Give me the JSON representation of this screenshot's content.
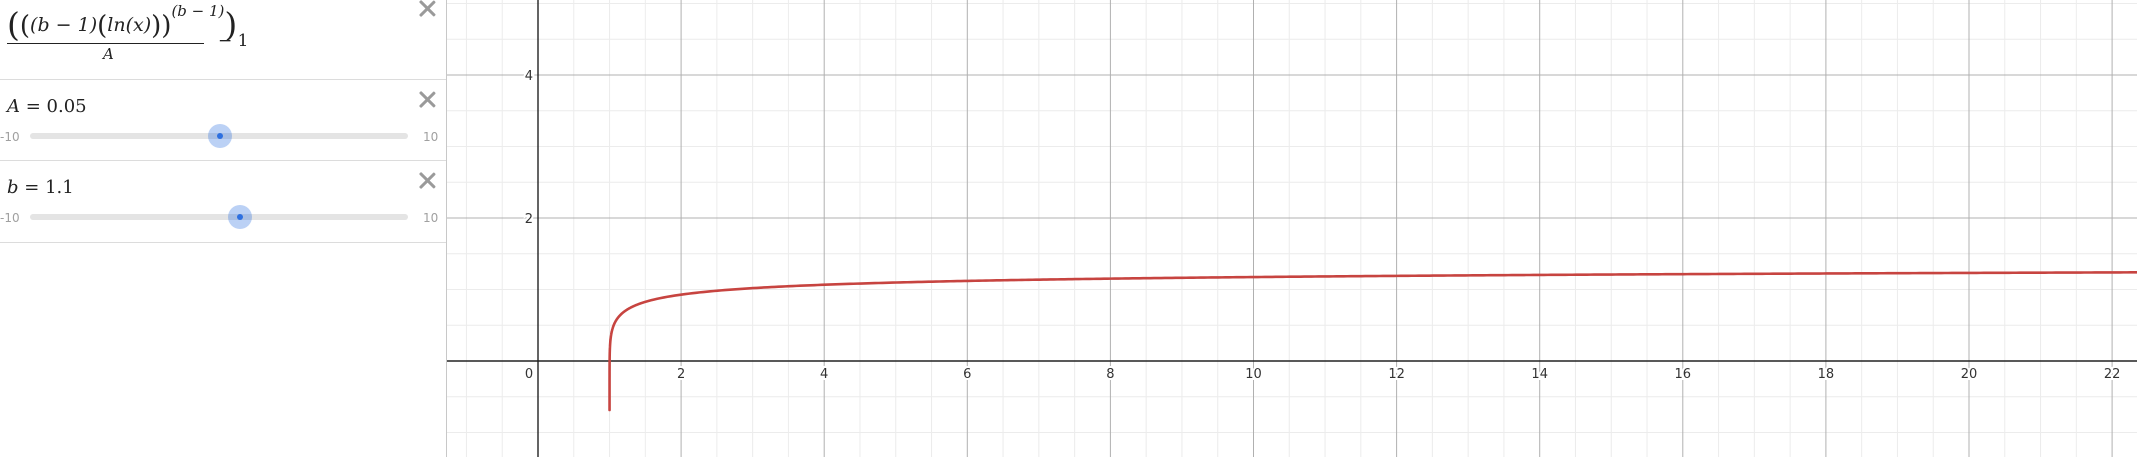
{
  "expression_list": {
    "formula": {
      "numerator_part1": "(b − 1)",
      "numerator_part2": "ln(x)",
      "exponent": "(b − 1)",
      "denominator": "A",
      "suffix": "− 1"
    },
    "slider_a": {
      "variable": "A",
      "value_text": "= 0.05",
      "value": 0.05,
      "min_label": "-10",
      "max_label": "10",
      "min": -10,
      "max": 10
    },
    "slider_b": {
      "variable": "b",
      "value_text": "= 1.1",
      "value": 1.1,
      "min_label": "-10",
      "max_label": "10",
      "min": -10,
      "max": 10
    }
  },
  "graph": {
    "x_ticks": [
      "0",
      "2",
      "4",
      "6",
      "8",
      "10",
      "12",
      "14",
      "16",
      "18",
      "20",
      "22"
    ],
    "y_ticks": [
      "4",
      "2"
    ],
    "curve_color": "#c74440",
    "x_range": [
      -0.5,
      22.3
    ],
    "y_range": [
      -1.3,
      5.1
    ]
  }
}
